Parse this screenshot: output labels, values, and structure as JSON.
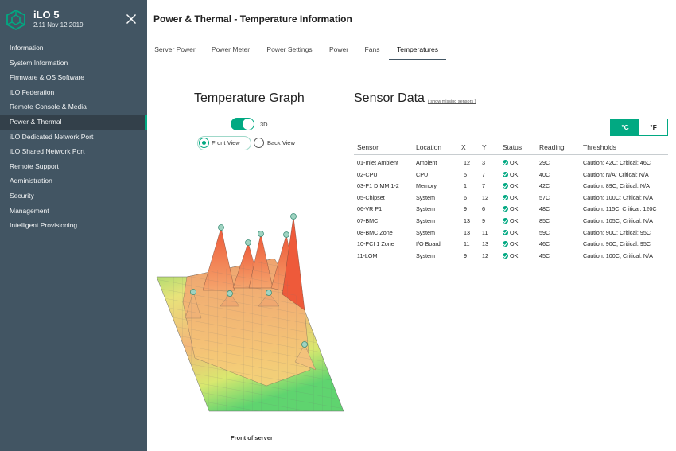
{
  "brand": {
    "name": "iLO 5",
    "version": "2.11 Nov 12 2019"
  },
  "nav": [
    {
      "label": "Information",
      "active": false
    },
    {
      "label": "System Information",
      "active": false
    },
    {
      "label": "Firmware & OS Software",
      "active": false
    },
    {
      "label": "iLO Federation",
      "active": false
    },
    {
      "label": "Remote Console & Media",
      "active": false
    },
    {
      "label": "Power & Thermal",
      "active": true
    },
    {
      "label": "iLO Dedicated Network Port",
      "active": false
    },
    {
      "label": "iLO Shared Network Port",
      "active": false
    },
    {
      "label": "Remote Support",
      "active": false
    },
    {
      "label": "Administration",
      "active": false
    },
    {
      "label": "Security",
      "active": false
    },
    {
      "label": "Management",
      "active": false
    },
    {
      "label": "Intelligent Provisioning",
      "active": false
    }
  ],
  "page_title": "Power & Thermal - Temperature Information",
  "tabs": [
    {
      "label": "Server Power",
      "active": false
    },
    {
      "label": "Power Meter",
      "active": false
    },
    {
      "label": "Power Settings",
      "active": false
    },
    {
      "label": "Power",
      "active": false
    },
    {
      "label": "Fans",
      "active": false
    },
    {
      "label": "Temperatures",
      "active": true
    }
  ],
  "graph": {
    "title": "Temperature Graph",
    "toggle_label": "3D",
    "toggle_on": true,
    "front_view_label": "Front View",
    "back_view_label": "Back View",
    "selected_view": "front",
    "front_caption": "Front of server"
  },
  "sensor_data": {
    "title": "Sensor Data",
    "show_missing_link": "( show missing sensors )",
    "unit_c": "°C",
    "unit_f": "°F",
    "selected_unit": "C",
    "columns": [
      "Sensor",
      "Location",
      "X",
      "Y",
      "Status",
      "Reading",
      "Thresholds"
    ],
    "rows": [
      {
        "sensor": "01-Inlet Ambient",
        "location": "Ambient",
        "x": "12",
        "y": "3",
        "status": "OK",
        "reading": "29C",
        "thresholds": "Caution: 42C; Critical: 46C"
      },
      {
        "sensor": "02-CPU",
        "location": "CPU",
        "x": "5",
        "y": "7",
        "status": "OK",
        "reading": "40C",
        "thresholds": "Caution: N/A; Critical: N/A"
      },
      {
        "sensor": "03-P1 DIMM 1-2",
        "location": "Memory",
        "x": "1",
        "y": "7",
        "status": "OK",
        "reading": "42C",
        "thresholds": "Caution: 89C; Critical: N/A"
      },
      {
        "sensor": "05-Chipset",
        "location": "System",
        "x": "6",
        "y": "12",
        "status": "OK",
        "reading": "57C",
        "thresholds": "Caution: 100C; Critical: N/A"
      },
      {
        "sensor": "06-VR P1",
        "location": "System",
        "x": "9",
        "y": "6",
        "status": "OK",
        "reading": "48C",
        "thresholds": "Caution: 115C; Critical: 120C"
      },
      {
        "sensor": "07-BMC",
        "location": "System",
        "x": "13",
        "y": "9",
        "status": "OK",
        "reading": "85C",
        "thresholds": "Caution: 105C; Critical: N/A"
      },
      {
        "sensor": "08-BMC Zone",
        "location": "System",
        "x": "13",
        "y": "11",
        "status": "OK",
        "reading": "59C",
        "thresholds": "Caution: 90C; Critical: 95C"
      },
      {
        "sensor": "10-PCI 1 Zone",
        "location": "I/O Board",
        "x": "11",
        "y": "13",
        "status": "OK",
        "reading": "46C",
        "thresholds": "Caution: 90C; Critical: 95C"
      },
      {
        "sensor": "11-LOM",
        "location": "System",
        "x": "9",
        "y": "12",
        "status": "OK",
        "reading": "45C",
        "thresholds": "Caution: 100C; Critical: N/A"
      }
    ]
  },
  "colors": {
    "sidebar": "#425563",
    "accent": "#01a982",
    "status_ok": "#01a982"
  },
  "icons": {
    "logo": "ilo-hexagon-logo-icon",
    "close": "close-icon",
    "status_ok": "check-circle-icon"
  }
}
